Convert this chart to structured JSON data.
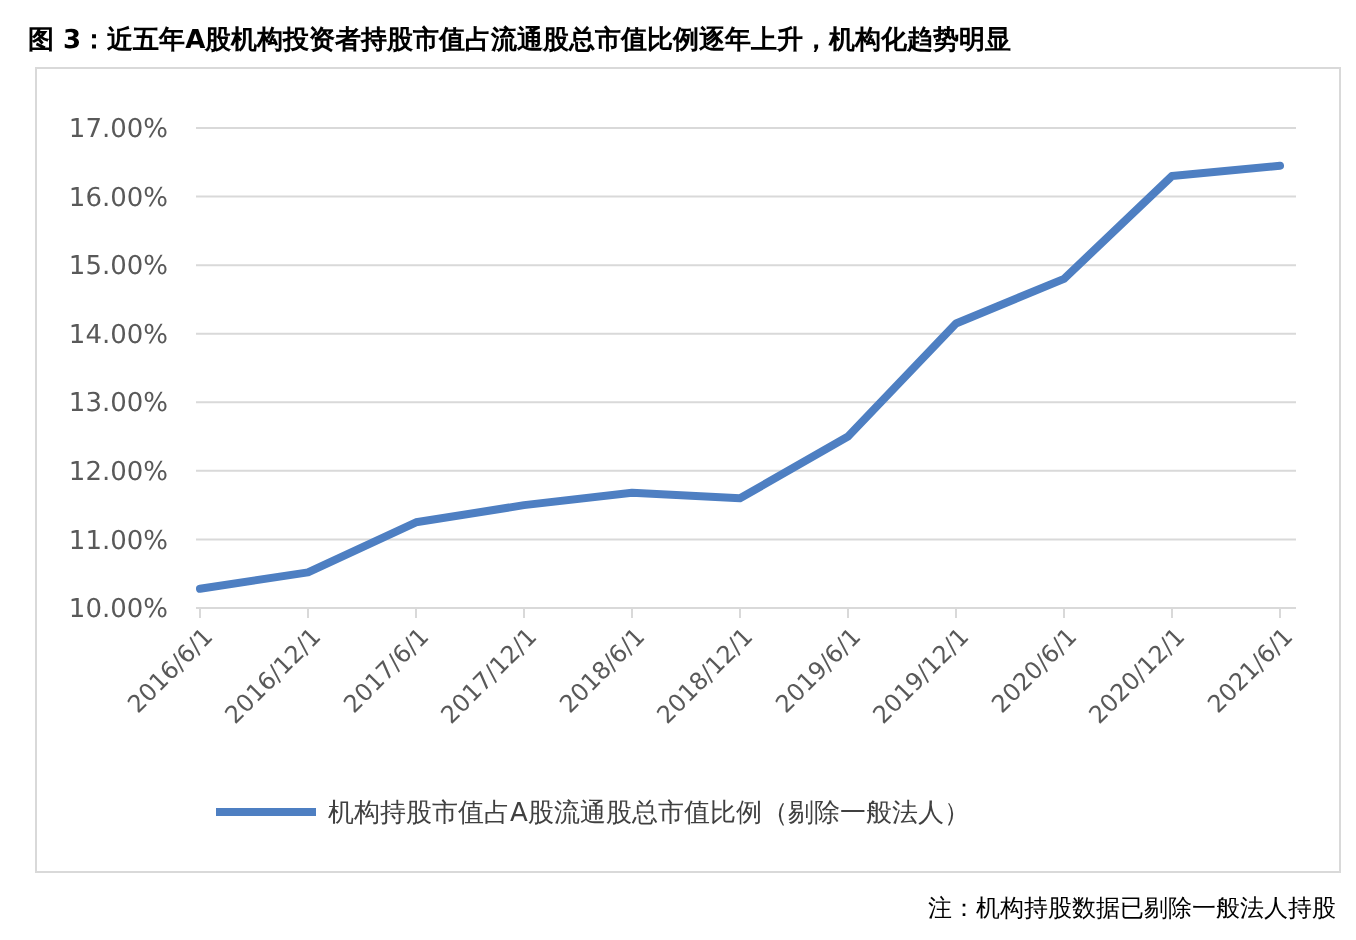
{
  "chart_data": {
    "type": "line",
    "title": "图 3：近五年A股机构投资者持股市值占流通股总市值比例逐年上升，机构化趋势明显",
    "categories": [
      "2016/6/1",
      "2016/12/1",
      "2017/6/1",
      "2017/12/1",
      "2018/6/1",
      "2018/12/1",
      "2019/6/1",
      "2019/12/1",
      "2020/6/1",
      "2020/12/1",
      "2021/6/1"
    ],
    "series": [
      {
        "name": "机构持股市值占A股流通股总市值比例（剔除一般法人）",
        "color": "#4e7fc2",
        "values": [
          10.28,
          10.52,
          11.25,
          11.5,
          11.68,
          11.6,
          12.5,
          14.15,
          14.8,
          16.3,
          16.45
        ]
      }
    ],
    "ylim": [
      10,
      17
    ],
    "yticks": [
      {
        "value": 10,
        "label": "10.00%"
      },
      {
        "value": 11,
        "label": "11.00%"
      },
      {
        "value": 12,
        "label": "12.00%"
      },
      {
        "value": 13,
        "label": "13.00%"
      },
      {
        "value": 14,
        "label": "14.00%"
      },
      {
        "value": 15,
        "label": "15.00%"
      },
      {
        "value": 16,
        "label": "16.00%"
      },
      {
        "value": 17,
        "label": "17.00%"
      }
    ],
    "grid": "y",
    "legend": "bottom",
    "marker": "none",
    "line_style": "solid",
    "annotations": [
      "注：机构持股数据已剔除一般法人持股"
    ]
  }
}
